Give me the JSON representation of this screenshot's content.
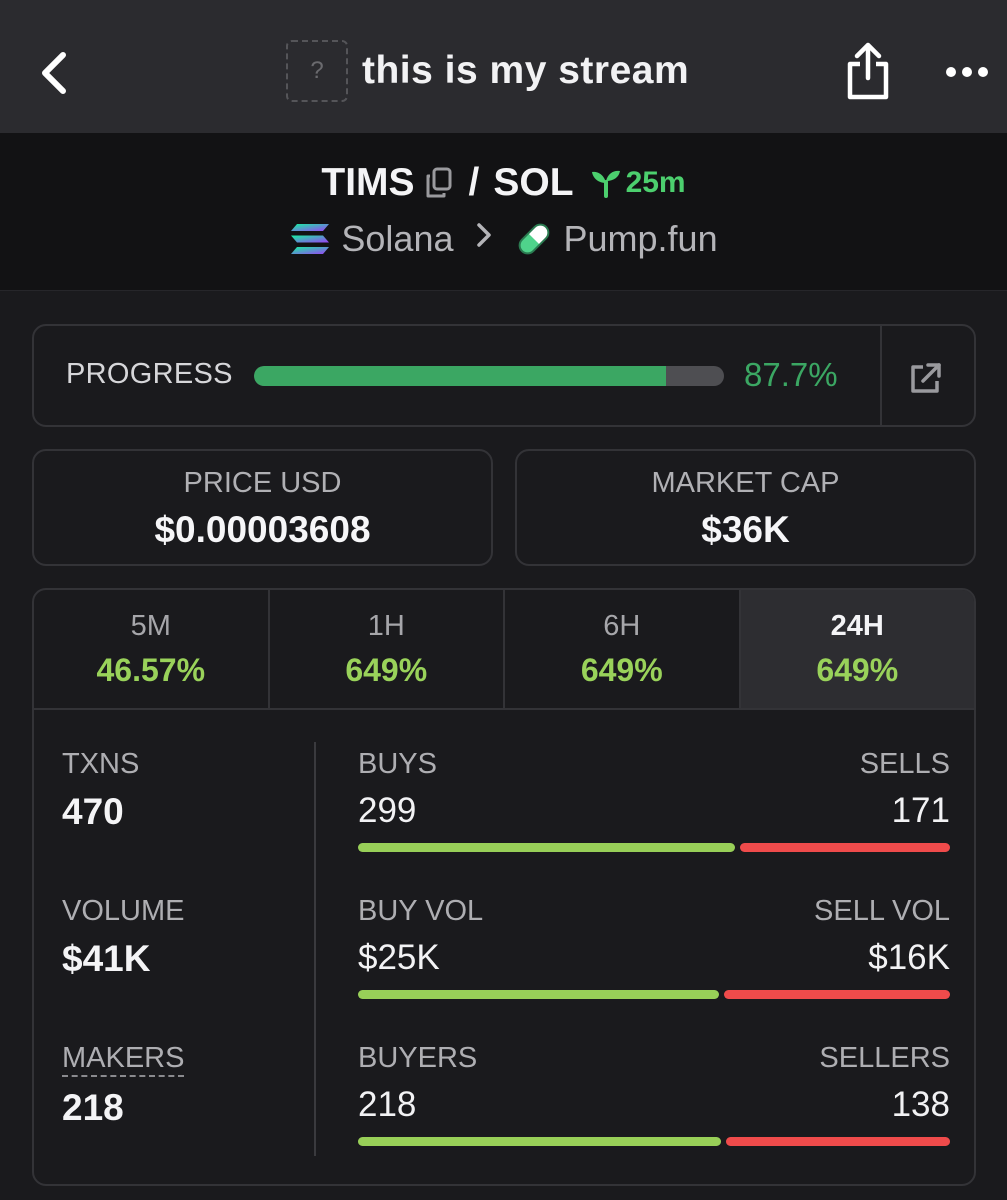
{
  "nav": {
    "title": "this is my stream",
    "avatar_placeholder": "?",
    "icons": {
      "back": "chevron-left-icon",
      "share": "share-icon",
      "more": "more-horizontal-icon"
    }
  },
  "pair": {
    "base": "TIMS",
    "quote": "SOL",
    "separator": "/",
    "age": "25m",
    "chain": "Solana",
    "dex": "Pump.fun",
    "colors": {
      "age": "#4ccf6e"
    }
  },
  "progress": {
    "label": "PROGRESS",
    "value_text": "87.7%",
    "fraction": 0.877,
    "colors": {
      "fill": "#3ba763",
      "track": "#4e4e52"
    }
  },
  "price": {
    "label": "PRICE USD",
    "value": "$0.00003608"
  },
  "market_cap": {
    "label": "MARKET CAP",
    "value": "$36K"
  },
  "tabs": [
    {
      "label": "5M",
      "value": "46.57%",
      "active": false
    },
    {
      "label": "1H",
      "value": "649%",
      "active": false
    },
    {
      "label": "6H",
      "value": "649%",
      "active": false
    },
    {
      "label": "24H",
      "value": "649%",
      "active": true
    }
  ],
  "stats": {
    "txns": {
      "label": "TXNS",
      "value": "470"
    },
    "volume": {
      "label": "VOLUME",
      "value": "$41K"
    },
    "makers": {
      "label": "MAKERS",
      "value": "218"
    }
  },
  "splits": {
    "txns": {
      "left_label": "BUYS",
      "right_label": "SELLS",
      "left_value": "299",
      "right_value": "171",
      "left_num": 299,
      "right_num": 171
    },
    "volume": {
      "left_label": "BUY VOL",
      "right_label": "SELL VOL",
      "left_value": "$25K",
      "right_value": "$16K",
      "left_num": 25,
      "right_num": 16
    },
    "makers": {
      "left_label": "BUYERS",
      "right_label": "SELLERS",
      "left_value": "218",
      "right_value": "138",
      "left_num": 218,
      "right_num": 138
    }
  },
  "colors": {
    "buy": "#98cf58",
    "sell": "#ef4b4b",
    "change_positive": "#99d25a"
  }
}
